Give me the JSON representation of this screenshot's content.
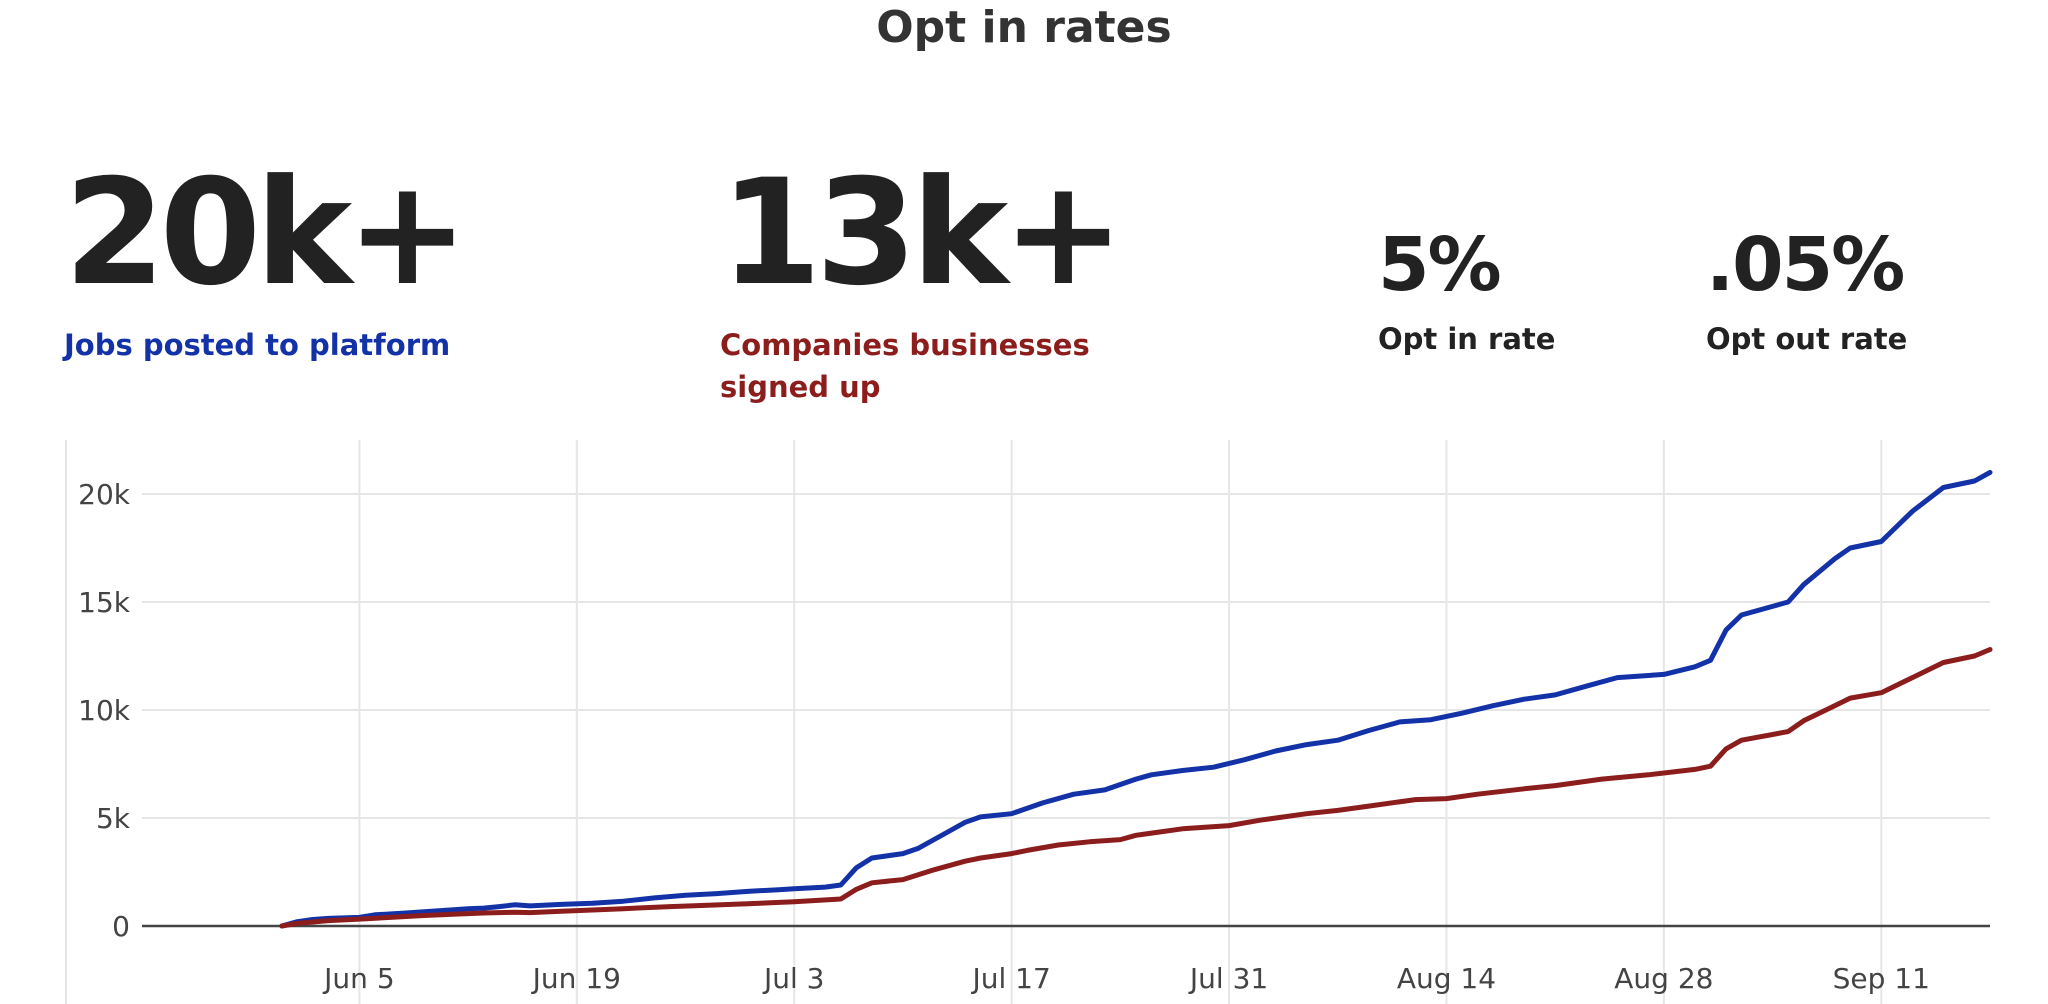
{
  "title": "Opt in rates",
  "stats": [
    {
      "value": "20k+",
      "label": "Jobs posted to platform"
    },
    {
      "value": "13k+",
      "label": "Companies businesses signed up"
    },
    {
      "value": "5%",
      "label": "Opt in rate"
    },
    {
      "value": ".05%",
      "label": "Opt out rate"
    }
  ],
  "colors": {
    "jobs": "#1432a8",
    "companies": "#8c1d1d",
    "grid": "#e6e6e6",
    "zero_line": "#444444"
  },
  "chart_data": {
    "type": "line",
    "title": "",
    "xlabel": "",
    "ylabel": "",
    "x_ticks": [
      "Jun 5",
      "Jun 19",
      "Jul 3",
      "Jul 17",
      "Jul 31",
      "Aug 14",
      "Aug 28",
      "Sep 11"
    ],
    "y_ticks": [
      "0",
      "5k",
      "10k",
      "15k",
      "20k"
    ],
    "ylim": [
      0,
      22500
    ],
    "xlim": [
      "2023-05-22",
      "2023-09-18"
    ],
    "grid": true,
    "legend": "none",
    "series": [
      {
        "key": "jobs",
        "points": [
          [
            "2023-05-31",
            0
          ],
          [
            "2023-06-01",
            200
          ],
          [
            "2023-06-02",
            300
          ],
          [
            "2023-06-03",
            350
          ],
          [
            "2023-06-05",
            400
          ],
          [
            "2023-06-06",
            520
          ],
          [
            "2023-06-08",
            600
          ],
          [
            "2023-06-10",
            700
          ],
          [
            "2023-06-12",
            800
          ],
          [
            "2023-06-13",
            830
          ],
          [
            "2023-06-14",
            900
          ],
          [
            "2023-06-15",
            980
          ],
          [
            "2023-06-16",
            930
          ],
          [
            "2023-06-18",
            1000
          ],
          [
            "2023-06-20",
            1050
          ],
          [
            "2023-06-22",
            1150
          ],
          [
            "2023-06-24",
            1300
          ],
          [
            "2023-06-26",
            1420
          ],
          [
            "2023-06-28",
            1500
          ],
          [
            "2023-06-30",
            1600
          ],
          [
            "2023-07-02",
            1680
          ],
          [
            "2023-07-03",
            1720
          ],
          [
            "2023-07-05",
            1800
          ],
          [
            "2023-07-06",
            1900
          ],
          [
            "2023-07-07",
            2700
          ],
          [
            "2023-07-08",
            3150
          ],
          [
            "2023-07-10",
            3350
          ],
          [
            "2023-07-11",
            3600
          ],
          [
            "2023-07-13",
            4400
          ],
          [
            "2023-07-14",
            4800
          ],
          [
            "2023-07-15",
            5050
          ],
          [
            "2023-07-17",
            5200
          ],
          [
            "2023-07-19",
            5700
          ],
          [
            "2023-07-21",
            6100
          ],
          [
            "2023-07-23",
            6300
          ],
          [
            "2023-07-25",
            6800
          ],
          [
            "2023-07-26",
            7000
          ],
          [
            "2023-07-28",
            7200
          ],
          [
            "2023-07-30",
            7350
          ],
          [
            "2023-08-01",
            7700
          ],
          [
            "2023-08-03",
            8100
          ],
          [
            "2023-08-05",
            8400
          ],
          [
            "2023-08-07",
            8600
          ],
          [
            "2023-08-09",
            9050
          ],
          [
            "2023-08-11",
            9450
          ],
          [
            "2023-08-13",
            9550
          ],
          [
            "2023-08-15",
            9850
          ],
          [
            "2023-08-17",
            10200
          ],
          [
            "2023-08-19",
            10500
          ],
          [
            "2023-08-21",
            10700
          ],
          [
            "2023-08-23",
            11100
          ],
          [
            "2023-08-25",
            11500
          ],
          [
            "2023-08-28",
            11650
          ],
          [
            "2023-08-30",
            12000
          ],
          [
            "2023-08-31",
            12300
          ],
          [
            "2023-09-01",
            13700
          ],
          [
            "2023-09-02",
            14400
          ],
          [
            "2023-09-05",
            15000
          ],
          [
            "2023-09-06",
            15800
          ],
          [
            "2023-09-08",
            17000
          ],
          [
            "2023-09-09",
            17500
          ],
          [
            "2023-09-11",
            17800
          ],
          [
            "2023-09-13",
            19200
          ],
          [
            "2023-09-15",
            20300
          ],
          [
            "2023-09-17",
            20600
          ],
          [
            "2023-09-18",
            21000
          ]
        ]
      },
      {
        "key": "companies",
        "points": [
          [
            "2023-05-31",
            0
          ],
          [
            "2023-06-01",
            120
          ],
          [
            "2023-06-03",
            250
          ],
          [
            "2023-06-05",
            320
          ],
          [
            "2023-06-07",
            400
          ],
          [
            "2023-06-09",
            480
          ],
          [
            "2023-06-11",
            540
          ],
          [
            "2023-06-13",
            600
          ],
          [
            "2023-06-15",
            640
          ],
          [
            "2023-06-16",
            620
          ],
          [
            "2023-06-18",
            680
          ],
          [
            "2023-06-20",
            740
          ],
          [
            "2023-06-22",
            800
          ],
          [
            "2023-06-25",
            900
          ],
          [
            "2023-06-27",
            950
          ],
          [
            "2023-06-30",
            1030
          ],
          [
            "2023-07-03",
            1120
          ],
          [
            "2023-07-06",
            1250
          ],
          [
            "2023-07-07",
            1700
          ],
          [
            "2023-07-08",
            2000
          ],
          [
            "2023-07-10",
            2150
          ],
          [
            "2023-07-12",
            2600
          ],
          [
            "2023-07-14",
            3000
          ],
          [
            "2023-07-15",
            3150
          ],
          [
            "2023-07-17",
            3350
          ],
          [
            "2023-07-18",
            3500
          ],
          [
            "2023-07-20",
            3750
          ],
          [
            "2023-07-22",
            3900
          ],
          [
            "2023-07-24",
            4000
          ],
          [
            "2023-07-25",
            4200
          ],
          [
            "2023-07-28",
            4500
          ],
          [
            "2023-07-31",
            4650
          ],
          [
            "2023-08-02",
            4900
          ],
          [
            "2023-08-05",
            5200
          ],
          [
            "2023-08-07",
            5350
          ],
          [
            "2023-08-09",
            5550
          ],
          [
            "2023-08-12",
            5850
          ],
          [
            "2023-08-14",
            5900
          ],
          [
            "2023-08-16",
            6100
          ],
          [
            "2023-08-19",
            6350
          ],
          [
            "2023-08-21",
            6500
          ],
          [
            "2023-08-24",
            6800
          ],
          [
            "2023-08-27",
            7000
          ],
          [
            "2023-08-30",
            7250
          ],
          [
            "2023-08-31",
            7400
          ],
          [
            "2023-09-01",
            8200
          ],
          [
            "2023-09-02",
            8600
          ],
          [
            "2023-09-05",
            9000
          ],
          [
            "2023-09-06",
            9500
          ],
          [
            "2023-09-08",
            10200
          ],
          [
            "2023-09-09",
            10550
          ],
          [
            "2023-09-11",
            10800
          ],
          [
            "2023-09-13",
            11500
          ],
          [
            "2023-09-15",
            12200
          ],
          [
            "2023-09-17",
            12500
          ],
          [
            "2023-09-18",
            12800
          ]
        ]
      }
    ]
  }
}
